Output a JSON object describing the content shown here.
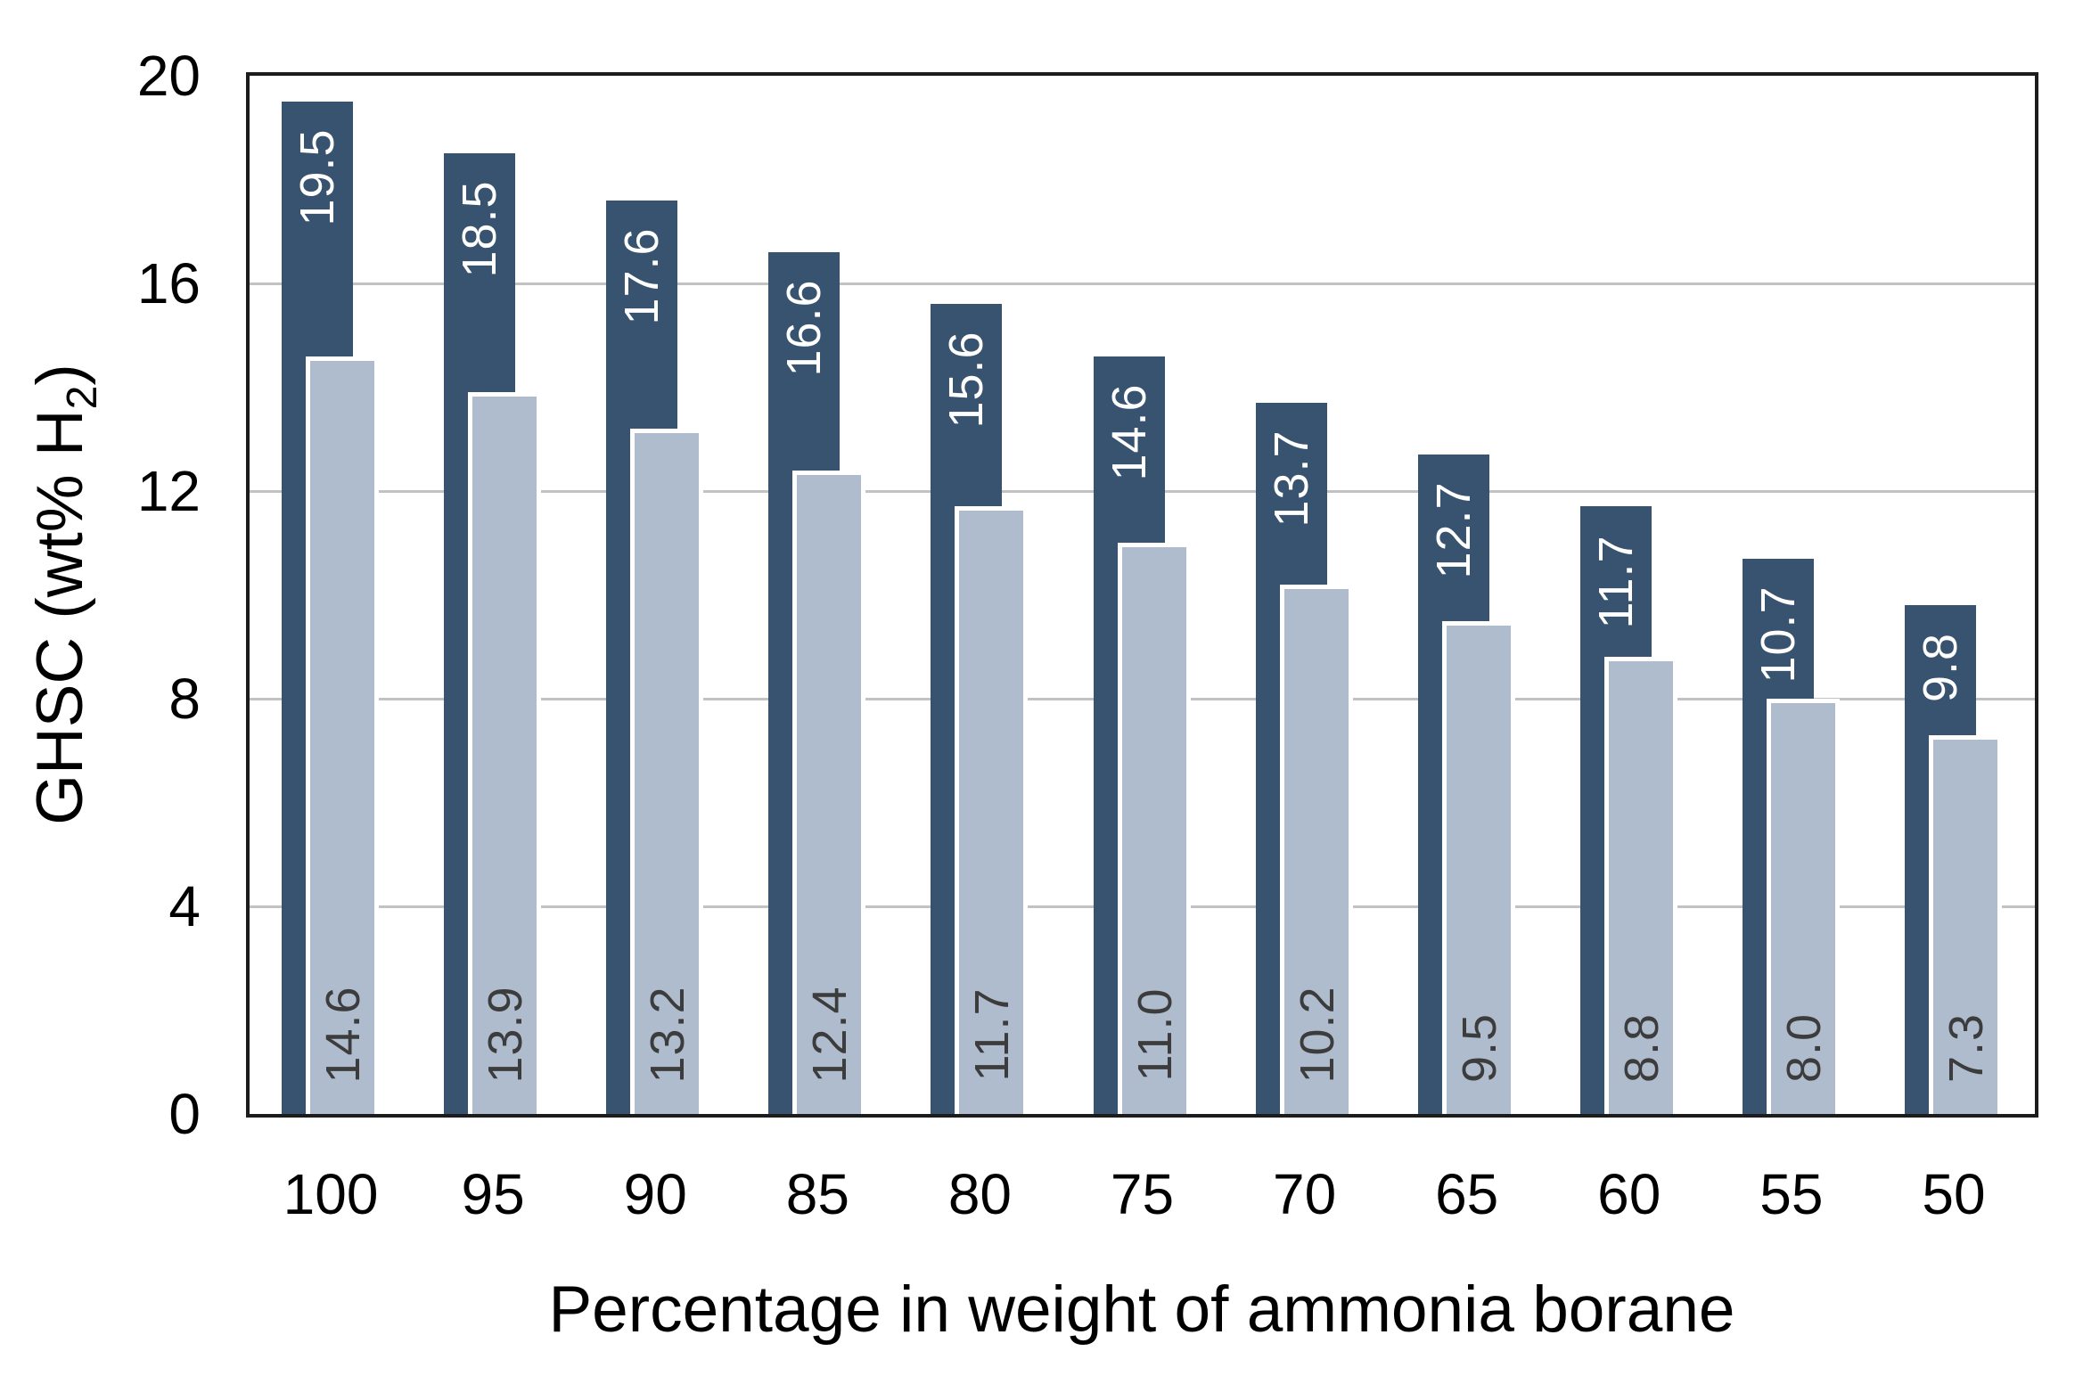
{
  "chart_data": {
    "type": "bar",
    "title": "",
    "xlabel": "Percentage in weight of ammonia borane",
    "ylabel": "GHSC (wt% H2)",
    "ylabel_parts": {
      "main": "GHSC (wt% H",
      "sub": "2",
      "end": ")"
    },
    "categories": [
      "100",
      "95",
      "90",
      "85",
      "80",
      "75",
      "70",
      "65",
      "60",
      "55",
      "50"
    ],
    "series": [
      {
        "name": "dark-series",
        "color": "#37536F",
        "label_color": "#FFFFFF",
        "values": [
          19.5,
          18.5,
          17.6,
          16.6,
          15.6,
          14.6,
          13.7,
          12.7,
          11.7,
          10.7,
          9.8
        ],
        "labels": [
          "19.5",
          "18.5",
          "17.6",
          "16.6",
          "15.6",
          "14.6",
          "13.7",
          "12.7",
          "11.7",
          "10.7",
          "9.8"
        ]
      },
      {
        "name": "light-series",
        "color": "#AFBCCE",
        "border_color": "#FFFFFF",
        "label_color": "#3C3C3C",
        "values": [
          14.6,
          13.9,
          13.2,
          12.4,
          11.7,
          11.0,
          10.2,
          9.5,
          8.8,
          8.0,
          7.3
        ],
        "labels": [
          "14.6",
          "13.9",
          "13.2",
          "12.4",
          "11.7",
          "11.0",
          "10.2",
          "9.5",
          "8.8",
          "8.0",
          "7.3"
        ]
      }
    ],
    "yticks": [
      "0",
      "4",
      "8",
      "12",
      "16",
      "20"
    ],
    "ylim": [
      0,
      20
    ],
    "grid": "horizontal",
    "gridline_color": "#C2C2C2",
    "plot_border_color": "#1C1C1C",
    "legend": "none"
  }
}
